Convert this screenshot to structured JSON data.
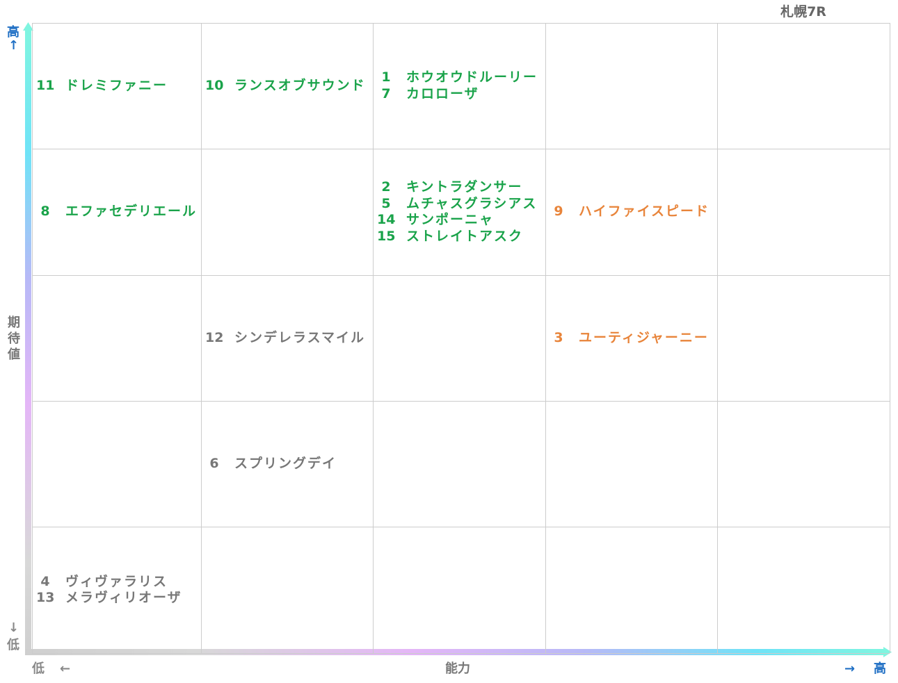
{
  "title": "札幌7R",
  "axes": {
    "y_high": "高",
    "y_up_arrow": "↑",
    "y_label_chars": [
      "期",
      "待",
      "値"
    ],
    "y_down_arrow": "↓",
    "y_low": "低",
    "x_low": "低",
    "x_left_arrow": "←",
    "x_label": "能力",
    "x_right_arrow": "→",
    "x_high": "高"
  },
  "colors": {
    "green": "#1aa34a",
    "orange": "#e8843a",
    "gray": "#777777",
    "axis_blue": "#1f6fc4",
    "grid": "#cccccc"
  },
  "chart_data": {
    "type": "table",
    "x_axis": {
      "label": "能力",
      "levels": 5,
      "direction": "low-to-high"
    },
    "y_axis": {
      "label": "期待値",
      "levels": 5,
      "direction": "low-to-high"
    },
    "cells": [
      {
        "ability": 1,
        "expectation": 5,
        "color": "green",
        "entries": [
          {
            "num": "11",
            "name": "ドレミファニー"
          }
        ]
      },
      {
        "ability": 2,
        "expectation": 5,
        "color": "green",
        "entries": [
          {
            "num": "10",
            "name": "ランスオブサウンド"
          }
        ]
      },
      {
        "ability": 3,
        "expectation": 5,
        "color": "green",
        "entries": [
          {
            "num": "1",
            "name": "ホウオウドルーリー"
          },
          {
            "num": "7",
            "name": "カロローザ"
          }
        ]
      },
      {
        "ability": 1,
        "expectation": 4,
        "color": "green",
        "entries": [
          {
            "num": "8",
            "name": "エファセデリエール"
          }
        ]
      },
      {
        "ability": 3,
        "expectation": 4,
        "color": "green",
        "entries": [
          {
            "num": "2",
            "name": "キントラダンサー"
          },
          {
            "num": "5",
            "name": "ムチャスグラシアス"
          },
          {
            "num": "14",
            "name": "サンポーニャ"
          },
          {
            "num": "15",
            "name": "ストレイトアスク"
          }
        ]
      },
      {
        "ability": 4,
        "expectation": 4,
        "color": "orange",
        "entries": [
          {
            "num": "9",
            "name": "ハイファイスピード"
          }
        ]
      },
      {
        "ability": 2,
        "expectation": 3,
        "color": "gray",
        "entries": [
          {
            "num": "12",
            "name": "シンデレラスマイル"
          }
        ]
      },
      {
        "ability": 4,
        "expectation": 3,
        "color": "orange",
        "entries": [
          {
            "num": "3",
            "name": "ユーティジャーニー"
          }
        ]
      },
      {
        "ability": 2,
        "expectation": 2,
        "color": "gray",
        "entries": [
          {
            "num": "6",
            "name": "スプリングデイ"
          }
        ]
      },
      {
        "ability": 1,
        "expectation": 1,
        "color": "gray",
        "entries": [
          {
            "num": "4",
            "name": "ヴィヴァラリス"
          },
          {
            "num": "13",
            "name": "メラヴィリオーザ"
          }
        ]
      }
    ]
  }
}
